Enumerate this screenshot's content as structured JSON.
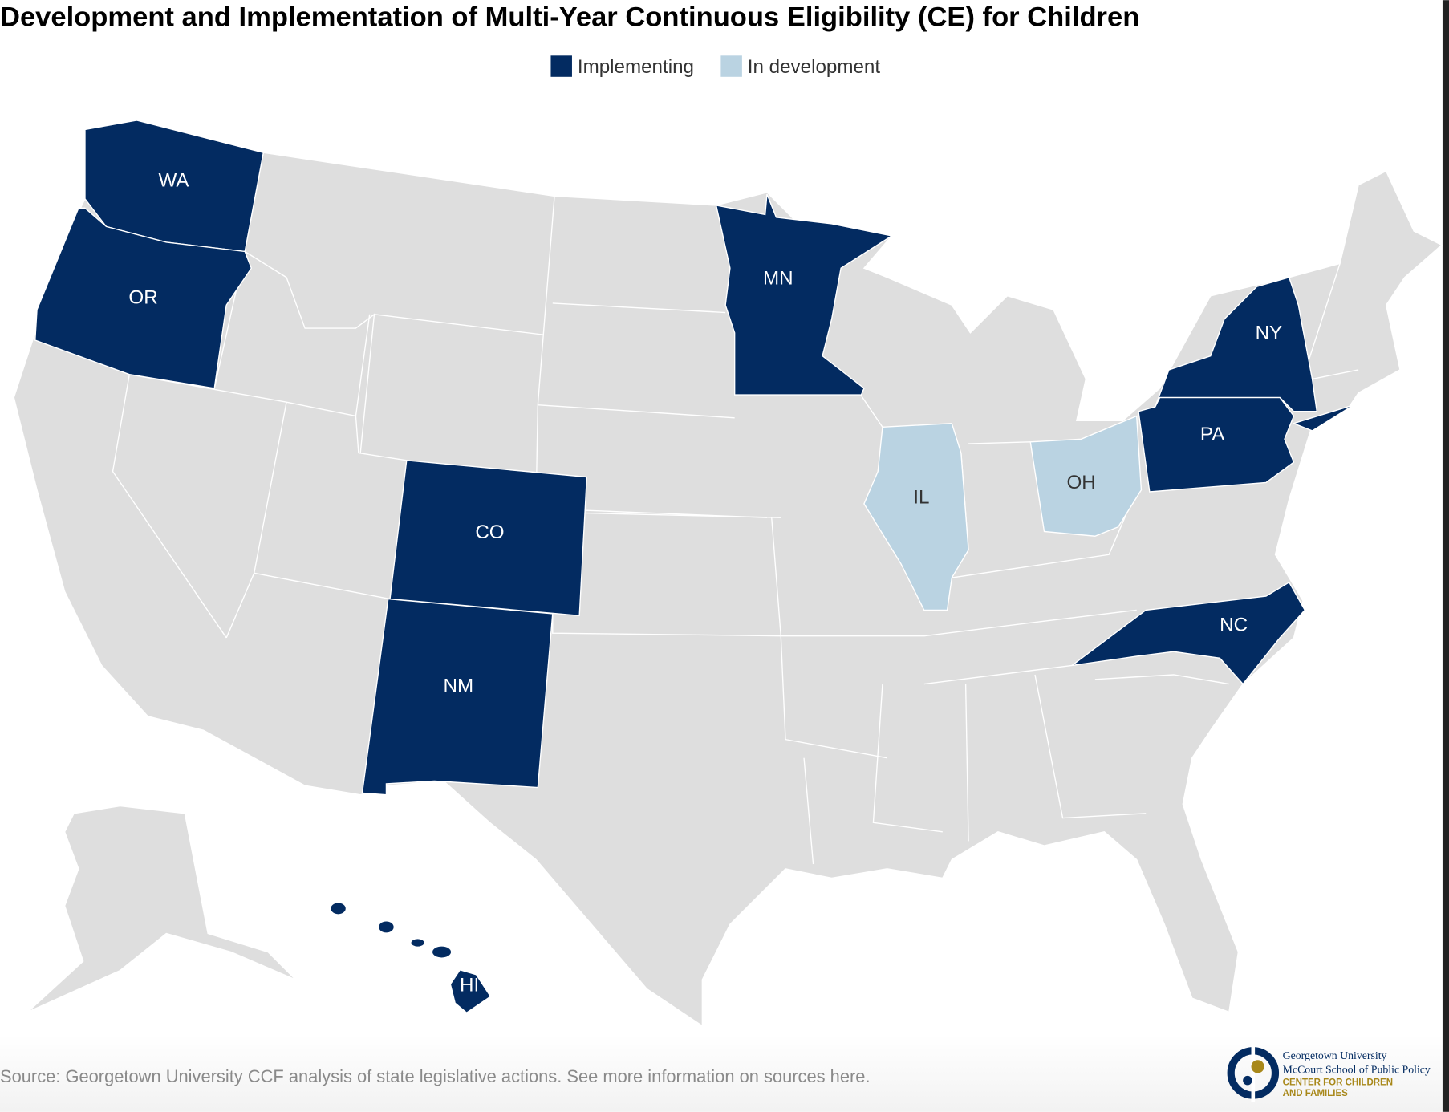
{
  "title": "Development and Implementation of Multi-Year Continuous Eligibility (CE) for Children",
  "legend": [
    {
      "label": "Implementing",
      "color": "#032b61"
    },
    {
      "label": "In development",
      "color": "#bad3e2"
    }
  ],
  "colors": {
    "other": "#dedede"
  },
  "states": {
    "WA": {
      "label": "WA",
      "status": "Implementing"
    },
    "OR": {
      "label": "OR",
      "status": "Implementing"
    },
    "MN": {
      "label": "MN",
      "status": "Implementing"
    },
    "NY": {
      "label": "NY",
      "status": "Implementing"
    },
    "PA": {
      "label": "PA",
      "status": "Implementing"
    },
    "CO": {
      "label": "CO",
      "status": "Implementing"
    },
    "NM": {
      "label": "NM",
      "status": "Implementing"
    },
    "NC": {
      "label": "NC",
      "status": "Implementing"
    },
    "HI": {
      "label": "HI",
      "status": "Implementing"
    },
    "IL": {
      "label": "IL",
      "status": "In development"
    },
    "OH": {
      "label": "OH",
      "status": "In development"
    }
  },
  "source": "Source: Georgetown University CCF analysis of state legislative actions. See more information on sources here.",
  "logo": {
    "line1": "Georgetown University",
    "line2": "McCourt School of Public Policy",
    "line3": "CENTER FOR CHILDREN",
    "line4": "AND FAMILIES"
  }
}
